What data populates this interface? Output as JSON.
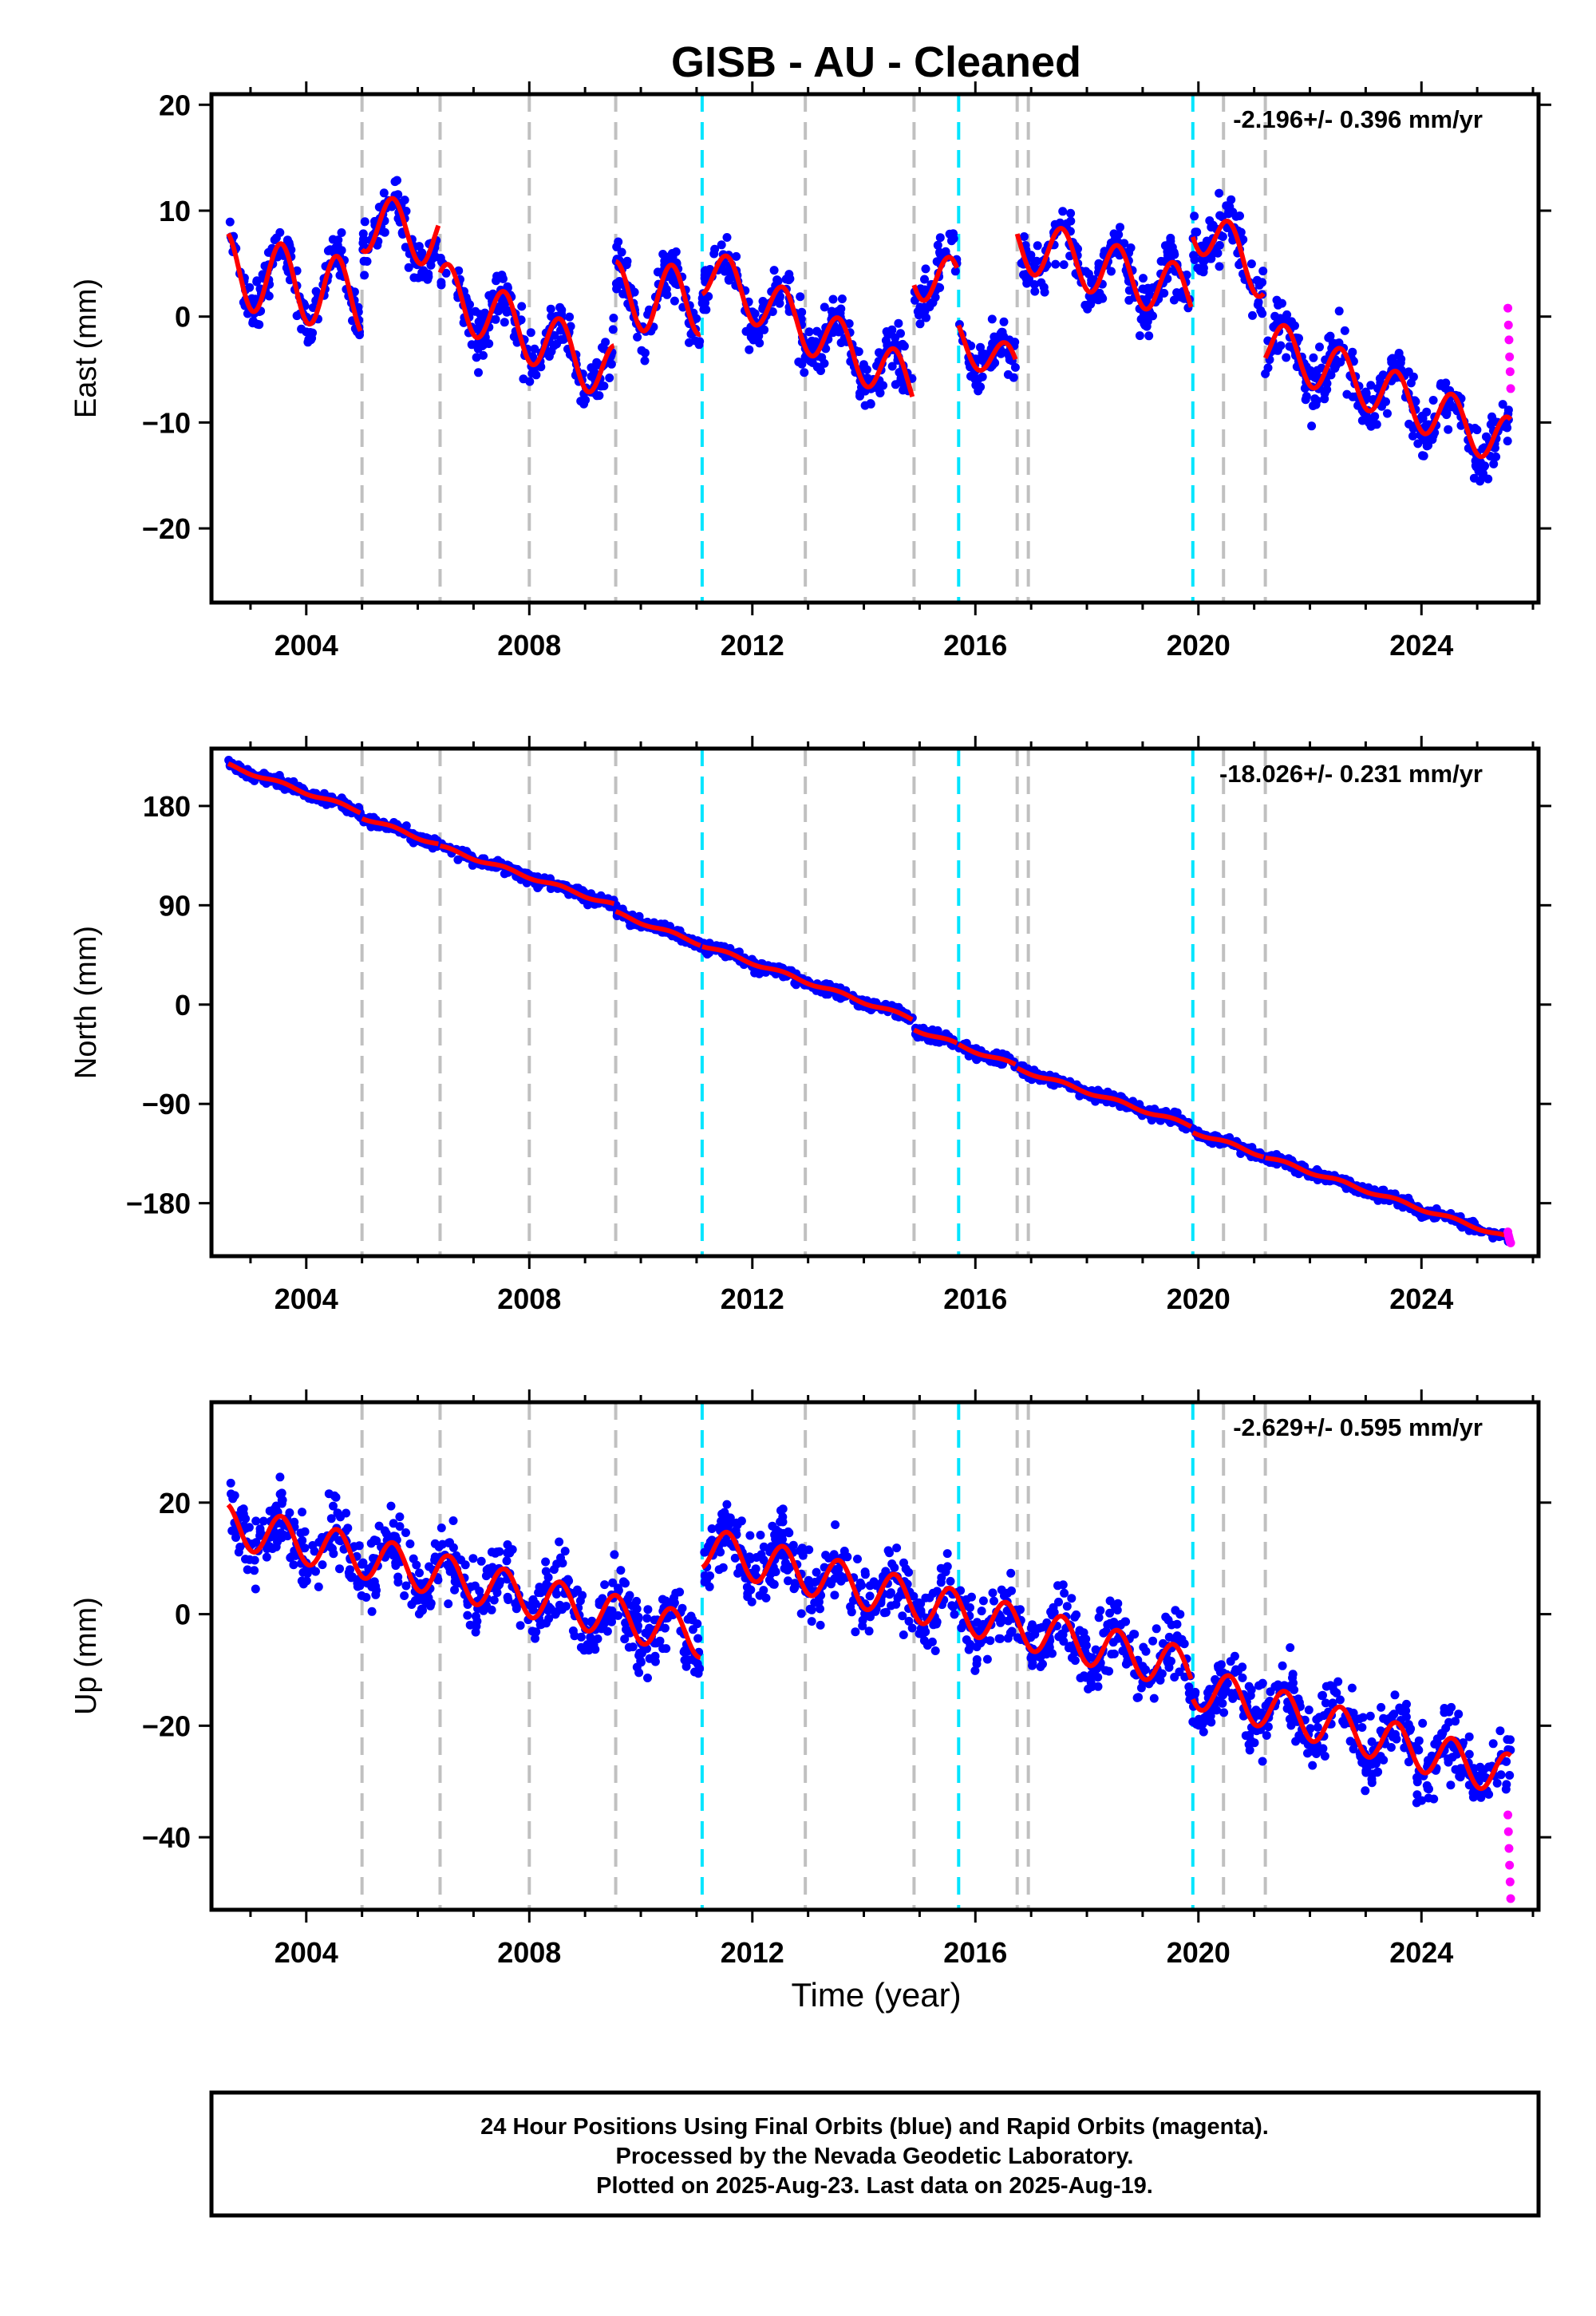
{
  "title": "GISB  - AU - Cleaned",
  "xlabel": "Time (year)",
  "footer": {
    "line1": "24 Hour Positions Using Final Orbits (blue) and Rapid Orbits (magenta).",
    "line2": "Processed by the Nevada Geodetic Laboratory.",
    "line3": "Plotted on 2025-Aug-23. Last data on 2025-Aug-19."
  },
  "colors": {
    "final_orbits": "#0000ff",
    "rapid_orbits": "#ff00ff",
    "model": "#ff0000",
    "equipment_change": "#c0c0c0",
    "earthquake": "#00e5ff"
  },
  "chart_data": [
    {
      "type": "scatter",
      "name": "east",
      "ylabel": "East (mm)",
      "rate_text": "-2.196+/- 0.396 mm/yr",
      "xlim": [
        2002.3,
        2026.1
      ],
      "ylim": [
        -27,
        21
      ],
      "xticks": [
        2004,
        2008,
        2012,
        2016,
        2020,
        2024
      ],
      "yticks": [
        20,
        10,
        0,
        -10,
        -20
      ],
      "ytick_labels": [
        "20",
        "10",
        "0",
        "−10",
        "−20"
      ],
      "grey_lines": [
        2005.0,
        2006.4,
        2008.0,
        2009.55,
        2012.95,
        2014.9,
        2016.75,
        2016.95,
        2020.45,
        2021.2
      ],
      "cyan_lines": [
        2011.1,
        2015.7,
        2019.9
      ],
      "segments": [
        {
          "x": [
            2002.6,
            2004.97
          ],
          "y": [
            4.5,
            1.7
          ],
          "amp": 3.5
        },
        {
          "x": [
            2005.0,
            2006.37
          ],
          "y": [
            9.0,
            7.4
          ],
          "amp": 2.8
        },
        {
          "x": [
            2006.4,
            2009.52
          ],
          "y": [
            2.5,
            -5.5
          ],
          "amp": 2.8
        },
        {
          "x": [
            2009.55,
            2011.07
          ],
          "y": [
            2.0,
            1.5
          ],
          "amp": 3.2
        },
        {
          "x": [
            2011.1,
            2014.87
          ],
          "y": [
            4.5,
            -6.5
          ],
          "amp": 2.5
        },
        {
          "x": [
            2014.9,
            2015.67
          ],
          "y": [
            4.5,
            2.7
          ],
          "amp": 2.6
        },
        {
          "x": [
            2015.7,
            2016.72
          ],
          "y": [
            -2.0,
            -5.0
          ],
          "amp": 2.0
        },
        {
          "x": [
            2016.75,
            2019.87
          ],
          "y": [
            7.0,
            2.0
          ],
          "amp": 2.6
        },
        {
          "x": [
            2019.9,
            2021.17
          ],
          "y": [
            9.0,
            4.0
          ],
          "amp": 2.5
        },
        {
          "x": [
            2021.2,
            2025.6
          ],
          "y": [
            -2.5,
            -12.0
          ],
          "amp": 2.4
        }
      ],
      "rapid_points": [
        [
          2025.55,
          0.8
        ],
        [
          2025.56,
          -0.8
        ],
        [
          2025.57,
          -2.2
        ],
        [
          2025.58,
          -3.8
        ],
        [
          2025.59,
          -5.2
        ],
        [
          2025.6,
          -6.8
        ]
      ]
    },
    {
      "type": "scatter",
      "name": "north",
      "ylabel": "North (mm)",
      "rate_text": "-18.026+/- 0.231 mm/yr",
      "xlim": [
        2002.3,
        2026.1
      ],
      "ylim": [
        -228,
        232
      ],
      "xticks": [
        2004,
        2008,
        2012,
        2016,
        2020,
        2024
      ],
      "yticks": [
        180,
        90,
        0,
        -90,
        -180
      ],
      "ytick_labels": [
        "180",
        "90",
        "0",
        "−90",
        "−180"
      ],
      "grey_lines": [
        2005.0,
        2006.4,
        2008.0,
        2009.55,
        2012.95,
        2014.9,
        2016.75,
        2016.95,
        2020.45,
        2021.2
      ],
      "cyan_lines": [
        2011.1,
        2015.7,
        2019.9
      ],
      "segments": [
        {
          "x": [
            2002.6,
            2004.97
          ],
          "y": [
            217,
            175
          ],
          "amp": 1.5
        },
        {
          "x": [
            2005.0,
            2006.37
          ],
          "y": [
            170,
            145
          ],
          "amp": 1.5
        },
        {
          "x": [
            2006.4,
            2009.52
          ],
          "y": [
            143,
            90
          ],
          "amp": 1.5
        },
        {
          "x": [
            2009.55,
            2011.07
          ],
          "y": [
            83,
            55
          ],
          "amp": 1.5
        },
        {
          "x": [
            2011.1,
            2014.87
          ],
          "y": [
            54,
            -13
          ],
          "amp": 1.5
        },
        {
          "x": [
            2014.9,
            2015.67
          ],
          "y": [
            -22,
            -36
          ],
          "amp": 1.5
        },
        {
          "x": [
            2015.7,
            2016.72
          ],
          "y": [
            -37,
            -55
          ],
          "amp": 1.5
        },
        {
          "x": [
            2016.75,
            2019.87
          ],
          "y": [
            -58,
            -110
          ],
          "amp": 1.5
        },
        {
          "x": [
            2019.9,
            2021.17
          ],
          "y": [
            -115,
            -137
          ],
          "amp": 1.5
        },
        {
          "x": [
            2021.2,
            2025.6
          ],
          "y": [
            -138,
            -212
          ],
          "amp": 1.5
        }
      ],
      "rapid_points": [
        [
          2025.55,
          -206
        ],
        [
          2025.56,
          -209
        ],
        [
          2025.57,
          -211
        ],
        [
          2025.58,
          -213
        ],
        [
          2025.59,
          -215
        ],
        [
          2025.6,
          -216
        ]
      ]
    },
    {
      "type": "scatter",
      "name": "up",
      "ylabel": "Up (mm)",
      "rate_text": "-2.629+/- 0.595 mm/yr",
      "xlim": [
        2002.3,
        2026.1
      ],
      "ylim": [
        -53,
        38
      ],
      "xticks": [
        2004,
        2008,
        2012,
        2016,
        2020,
        2024
      ],
      "yticks": [
        20,
        0,
        -20,
        -40
      ],
      "ytick_labels": [
        "20",
        "0",
        "−20",
        "−40"
      ],
      "grey_lines": [
        2005.0,
        2006.4,
        2008.0,
        2009.55,
        2012.95,
        2014.9,
        2016.75,
        2016.95,
        2020.45,
        2021.2
      ],
      "cyan_lines": [
        2011.1,
        2015.7,
        2019.9
      ],
      "segments": [
        {
          "x": [
            2002.6,
            2011.07
          ],
          "y": [
            16,
            -4
          ],
          "amp": 3.8
        },
        {
          "x": [
            2011.1,
            2019.87
          ],
          "y": [
            12,
            -10
          ],
          "amp": 3.8
        },
        {
          "x": [
            2019.9,
            2025.6
          ],
          "y": [
            -13,
            -29
          ],
          "amp": 3.8
        }
      ],
      "rapid_points": [
        [
          2025.55,
          -36
        ],
        [
          2025.56,
          -39
        ],
        [
          2025.57,
          -42
        ],
        [
          2025.58,
          -45
        ],
        [
          2025.59,
          -48
        ],
        [
          2025.6,
          -51
        ]
      ]
    }
  ]
}
